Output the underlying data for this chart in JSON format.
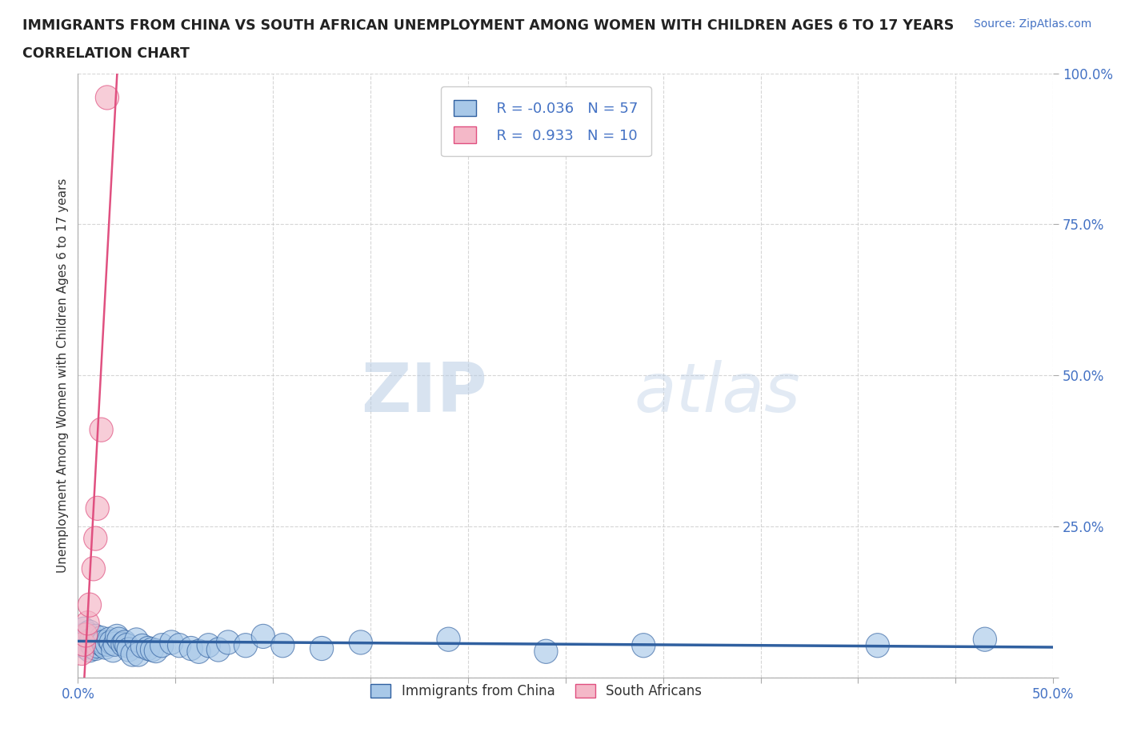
{
  "title_line1": "IMMIGRANTS FROM CHINA VS SOUTH AFRICAN UNEMPLOYMENT AMONG WOMEN WITH CHILDREN AGES 6 TO 17 YEARS",
  "title_line2": "CORRELATION CHART",
  "source_text": "Source: ZipAtlas.com",
  "ylabel": "Unemployment Among Women with Children Ages 6 to 17 years",
  "xlim": [
    0.0,
    0.5
  ],
  "ylim": [
    0.0,
    1.0
  ],
  "xticks": [
    0.0,
    0.05,
    0.1,
    0.15,
    0.2,
    0.25,
    0.3,
    0.35,
    0.4,
    0.45,
    0.5
  ],
  "xticklabels": [
    "0.0%",
    "",
    "",
    "",
    "",
    "",
    "",
    "",
    "",
    "",
    "50.0%"
  ],
  "yticks": [
    0.0,
    0.25,
    0.5,
    0.75,
    1.0
  ],
  "yticklabels": [
    "",
    "25.0%",
    "50.0%",
    "75.0%",
    "100.0%"
  ],
  "blue_R": -0.036,
  "blue_N": 57,
  "pink_R": 0.933,
  "pink_N": 10,
  "blue_color": "#A8C8E8",
  "pink_color": "#F4B8C8",
  "blue_line_color": "#3060A0",
  "pink_line_color": "#E05080",
  "watermark_zip": "ZIP",
  "watermark_atlas": "atlas",
  "blue_scatter_x": [
    0.001,
    0.002,
    0.003,
    0.003,
    0.004,
    0.004,
    0.005,
    0.005,
    0.006,
    0.006,
    0.007,
    0.007,
    0.008,
    0.009,
    0.009,
    0.01,
    0.011,
    0.012,
    0.012,
    0.013,
    0.014,
    0.015,
    0.016,
    0.017,
    0.018,
    0.019,
    0.02,
    0.021,
    0.023,
    0.024,
    0.025,
    0.026,
    0.028,
    0.03,
    0.031,
    0.033,
    0.036,
    0.038,
    0.04,
    0.043,
    0.048,
    0.052,
    0.058,
    0.062,
    0.067,
    0.072,
    0.077,
    0.086,
    0.095,
    0.105,
    0.125,
    0.145,
    0.19,
    0.24,
    0.29,
    0.41,
    0.465
  ],
  "blue_scatter_y": [
    0.065,
    0.055,
    0.07,
    0.08,
    0.05,
    0.065,
    0.06,
    0.072,
    0.045,
    0.075,
    0.055,
    0.062,
    0.05,
    0.048,
    0.068,
    0.052,
    0.058,
    0.055,
    0.065,
    0.058,
    0.05,
    0.055,
    0.063,
    0.058,
    0.045,
    0.055,
    0.068,
    0.063,
    0.055,
    0.058,
    0.053,
    0.046,
    0.038,
    0.062,
    0.038,
    0.052,
    0.048,
    0.046,
    0.044,
    0.053,
    0.058,
    0.053,
    0.048,
    0.043,
    0.053,
    0.046,
    0.058,
    0.053,
    0.068,
    0.053,
    0.048,
    0.058,
    0.063,
    0.043,
    0.053,
    0.053,
    0.063
  ],
  "pink_scatter_x": [
    0.002,
    0.003,
    0.004,
    0.005,
    0.006,
    0.008,
    0.009,
    0.01,
    0.012,
    0.015
  ],
  "pink_scatter_y": [
    0.04,
    0.055,
    0.07,
    0.09,
    0.12,
    0.18,
    0.23,
    0.28,
    0.41,
    0.96
  ],
  "blue_line_x": [
    0.0,
    0.5
  ],
  "blue_line_y": [
    0.06,
    0.05
  ],
  "pink_line_x_start": 0.0,
  "pink_line_x_end": 0.017,
  "pink_line_intercept": -0.02,
  "pink_line_slope": 65.0
}
